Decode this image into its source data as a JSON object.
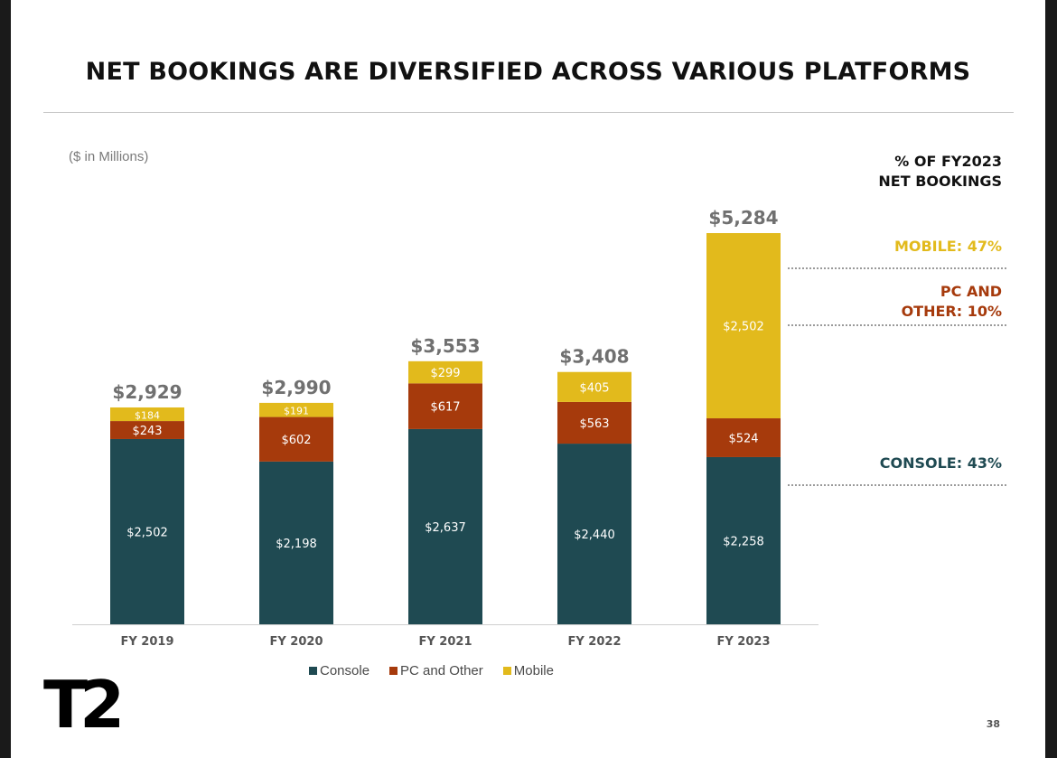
{
  "slide": {
    "title": "NET BOOKINGS ARE DIVERSIFIED ACROSS VARIOUS PLATFORMS",
    "units": "($ in Millions)",
    "page_number": "38",
    "logo_text": "T2"
  },
  "side_panel": {
    "heading_line1": "% OF FY2023",
    "heading_line2": "NET BOOKINGS",
    "mobile": "MOBILE: 47%",
    "pc_line1": "PC AND",
    "pc_line2": "OTHER: 10%",
    "console": "CONSOLE: 43%"
  },
  "colors": {
    "console": "#1f4a52",
    "pc": "#a63a0c",
    "mobile": "#e2ba1c"
  },
  "chart_data": {
    "type": "bar",
    "stacked": true,
    "categories": [
      "FY 2019",
      "FY 2020",
      "FY 2021",
      "FY 2022",
      "FY 2023"
    ],
    "series": [
      {
        "name": "Console",
        "values": [
          2502,
          2198,
          2637,
          2440,
          2258
        ],
        "labels": [
          "$2,502",
          "$2,198",
          "$2,637",
          "$2,440",
          "$2,258"
        ]
      },
      {
        "name": "PC and Other",
        "values": [
          243,
          602,
          617,
          563,
          524
        ],
        "labels": [
          "$243",
          "$602",
          "$617",
          "$563",
          "$524"
        ]
      },
      {
        "name": "Mobile",
        "values": [
          184,
          191,
          299,
          405,
          2502
        ],
        "labels": [
          "$184",
          "$191",
          "$299",
          "$405",
          "$2,502"
        ]
      }
    ],
    "totals": [
      2929,
      2990,
      3553,
      3408,
      5284
    ],
    "total_labels": [
      "$2,929",
      "$2,990",
      "$3,553",
      "$3,408",
      "$5,284"
    ],
    "ylim": [
      0,
      5284
    ],
    "grid": false,
    "legend_position": "bottom"
  }
}
